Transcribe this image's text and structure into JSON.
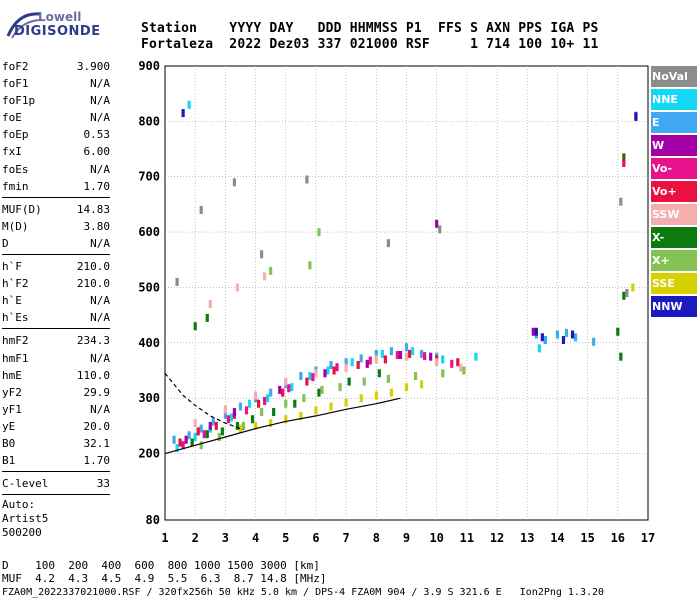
{
  "logo": {
    "line1": "Lowell",
    "line2": "DIGISONDE"
  },
  "header": {
    "row1": "Station    YYYY DAY   DDD HHMMSS P1  FFS S AXN PPS IGA PS",
    "row2": "Fortaleza  2022 Dez03 337 021000 RSF     1 714 100 10+ 11"
  },
  "params": {
    "g1": [
      {
        "name": "foF2",
        "value": "3.900"
      },
      {
        "name": "foF1",
        "value": "N/A"
      },
      {
        "name": "foF1p",
        "value": "N/A"
      },
      {
        "name": "foE",
        "value": "N/A"
      },
      {
        "name": "foEp",
        "value": "0.53"
      },
      {
        "name": "fxI",
        "value": "6.00"
      },
      {
        "name": "foEs",
        "value": "N/A"
      },
      {
        "name": "fmin",
        "value": "1.70"
      }
    ],
    "g2": [
      {
        "name": "MUF(D)",
        "value": "14.83"
      },
      {
        "name": "M(D)",
        "value": "3.80"
      },
      {
        "name": "D",
        "value": "N/A"
      }
    ],
    "g3": [
      {
        "name": "h`F",
        "value": "210.0"
      },
      {
        "name": "h`F2",
        "value": "210.0"
      },
      {
        "name": "h`E",
        "value": "N/A"
      },
      {
        "name": "h`Es",
        "value": "N/A"
      }
    ],
    "g4": [
      {
        "name": "hmF2",
        "value": "234.3"
      },
      {
        "name": "hmF1",
        "value": "N/A"
      },
      {
        "name": "hmE",
        "value": "110.0"
      },
      {
        "name": "yF2",
        "value": "29.9"
      },
      {
        "name": "yF1",
        "value": "N/A"
      },
      {
        "name": "yE",
        "value": "20.0"
      },
      {
        "name": "B0",
        "value": "32.1"
      },
      {
        "name": "B1",
        "value": "1.70"
      }
    ],
    "g5": [
      {
        "name": "C-level",
        "value": "33"
      }
    ],
    "auto": [
      "Auto:",
      "Artist5",
      "500200"
    ]
  },
  "legend": [
    {
      "label": "NoVal",
      "color": "#8c8c8c"
    },
    {
      "label": "NNE",
      "color": "#13d8f5"
    },
    {
      "label": "E",
      "color": "#3fa8f0"
    },
    {
      "label": "W",
      "color": "#a300a3"
    },
    {
      "label": "Vo-",
      "color": "#e8138c"
    },
    {
      "label": "Vo+",
      "color": "#ea1040"
    },
    {
      "label": "SSW",
      "color": "#f5aeae"
    },
    {
      "label": "X-",
      "color": "#0d7a0d"
    },
    {
      "label": "X+",
      "color": "#84c254"
    },
    {
      "label": "SSE",
      "color": "#d6d000"
    },
    {
      "label": "NNW",
      "color": "#1a1ac0"
    }
  ],
  "chart_data": {
    "type": "scatter",
    "xlim": [
      1,
      17
    ],
    "ylim": [
      80,
      900
    ],
    "x_ticks": [
      "1",
      "2",
      "3",
      "4",
      "5",
      "6",
      "7",
      "8",
      "9",
      "10",
      "11",
      "12",
      "13",
      "14",
      "15",
      "16",
      "17"
    ],
    "y_ticks": [
      "80",
      "200",
      "300",
      "400",
      "500",
      "600",
      "700",
      "800",
      "900"
    ],
    "grid": "dotted",
    "series": [
      {
        "name": "E",
        "points": [
          [
            1.3,
            225
          ],
          [
            1.8,
            233
          ],
          [
            2.2,
            245
          ],
          [
            2.6,
            258
          ],
          [
            3.0,
            270
          ],
          [
            3.5,
            285
          ],
          [
            4.0,
            300
          ],
          [
            4.5,
            310
          ],
          [
            5.0,
            325
          ],
          [
            5.5,
            340
          ],
          [
            6.0,
            350
          ],
          [
            6.5,
            360
          ],
          [
            7.0,
            365
          ],
          [
            7.5,
            372
          ],
          [
            8.0,
            380
          ],
          [
            8.5,
            385
          ],
          [
            9.0,
            392
          ],
          [
            9.5,
            380
          ],
          [
            10.0,
            375
          ],
          [
            13.3,
            415
          ],
          [
            13.6,
            405
          ],
          [
            14.0,
            415
          ],
          [
            14.3,
            418
          ],
          [
            14.6,
            410
          ],
          [
            15.2,
            402
          ]
        ]
      },
      {
        "name": "NNE",
        "points": [
          [
            1.4,
            210
          ],
          [
            2.0,
            230
          ],
          [
            2.5,
            245
          ],
          [
            3.2,
            265
          ],
          [
            3.8,
            290
          ],
          [
            4.4,
            300
          ],
          [
            5.2,
            320
          ],
          [
            5.8,
            340
          ],
          [
            6.4,
            350
          ],
          [
            7.2,
            365
          ],
          [
            8.2,
            380
          ],
          [
            9.2,
            385
          ],
          [
            10.2,
            370
          ],
          [
            11.3,
            375
          ],
          [
            1.8,
            830
          ],
          [
            13.4,
            390
          ]
        ]
      },
      {
        "name": "X-",
        "points": [
          [
            1.9,
            220
          ],
          [
            2.4,
            235
          ],
          [
            2.9,
            240
          ],
          [
            3.4,
            250
          ],
          [
            3.9,
            262
          ],
          [
            4.6,
            275
          ],
          [
            5.3,
            290
          ],
          [
            6.1,
            310
          ],
          [
            7.1,
            330
          ],
          [
            8.1,
            345
          ],
          [
            2.0,
            430
          ],
          [
            2.4,
            445
          ],
          [
            16.2,
            735
          ],
          [
            16.2,
            485
          ],
          [
            16.0,
            420
          ],
          [
            16.1,
            375
          ]
        ]
      },
      {
        "name": "X+",
        "points": [
          [
            2.2,
            215
          ],
          [
            2.8,
            230
          ],
          [
            3.6,
            250
          ],
          [
            4.2,
            275
          ],
          [
            5.0,
            290
          ],
          [
            5.6,
            300
          ],
          [
            6.2,
            315
          ],
          [
            6.8,
            320
          ],
          [
            7.6,
            330
          ],
          [
            8.4,
            335
          ],
          [
            9.3,
            340
          ],
          [
            10.2,
            345
          ],
          [
            10.9,
            350
          ],
          [
            4.5,
            530
          ],
          [
            5.8,
            540
          ],
          [
            6.1,
            600
          ]
        ]
      },
      {
        "name": "SSE",
        "points": [
          [
            3.5,
            245
          ],
          [
            4.0,
            250
          ],
          [
            4.5,
            255
          ],
          [
            5.0,
            262
          ],
          [
            5.5,
            268
          ],
          [
            6.0,
            278
          ],
          [
            6.5,
            285
          ],
          [
            7.0,
            292
          ],
          [
            7.5,
            300
          ],
          [
            8.0,
            305
          ],
          [
            8.5,
            310
          ],
          [
            9.0,
            320
          ],
          [
            9.5,
            325
          ],
          [
            16.5,
            500
          ]
        ]
      },
      {
        "name": "Vo+",
        "points": [
          [
            1.5,
            220
          ],
          [
            2.1,
            240
          ],
          [
            2.7,
            250
          ],
          [
            3.3,
            270
          ],
          [
            4.1,
            290
          ],
          [
            4.9,
            310
          ],
          [
            5.7,
            330
          ],
          [
            6.6,
            350
          ],
          [
            7.4,
            360
          ],
          [
            8.3,
            370
          ],
          [
            9.1,
            380
          ],
          [
            10.0,
            370
          ],
          [
            10.7,
            365
          ],
          [
            16.2,
            725
          ]
        ]
      },
      {
        "name": "Vo-",
        "points": [
          [
            1.6,
            215
          ],
          [
            2.3,
            235
          ],
          [
            3.1,
            262
          ],
          [
            3.7,
            278
          ],
          [
            4.3,
            295
          ],
          [
            5.1,
            318
          ],
          [
            5.9,
            338
          ],
          [
            6.7,
            356
          ],
          [
            7.8,
            368
          ],
          [
            8.7,
            378
          ],
          [
            9.6,
            376
          ],
          [
            10.5,
            362
          ]
        ]
      },
      {
        "name": "W",
        "points": [
          [
            1.7,
            225
          ],
          [
            2.5,
            250
          ],
          [
            3.3,
            275
          ],
          [
            4.8,
            315
          ],
          [
            6.3,
            345
          ],
          [
            7.7,
            362
          ],
          [
            8.8,
            378
          ],
          [
            9.8,
            375
          ],
          [
            10.0,
            615
          ],
          [
            16.6,
            810
          ],
          [
            13.2,
            420
          ]
        ]
      },
      {
        "name": "SSW",
        "points": [
          [
            2.0,
            255
          ],
          [
            3.0,
            280
          ],
          [
            4.0,
            305
          ],
          [
            5.0,
            330
          ],
          [
            6.0,
            345
          ],
          [
            7.0,
            355
          ],
          [
            8.0,
            370
          ],
          [
            9.0,
            375
          ],
          [
            10.0,
            365
          ],
          [
            10.8,
            355
          ],
          [
            2.5,
            470
          ],
          [
            3.4,
            500
          ],
          [
            4.3,
            520
          ]
        ]
      },
      {
        "name": "NNW",
        "points": [
          [
            1.6,
            815
          ],
          [
            13.3,
            420
          ],
          [
            13.5,
            410
          ],
          [
            14.2,
            405
          ],
          [
            14.5,
            415
          ],
          [
            16.6,
            808
          ]
        ]
      },
      {
        "name": "NoVal",
        "points": [
          [
            1.4,
            510
          ],
          [
            2.2,
            640
          ],
          [
            3.3,
            690
          ],
          [
            4.2,
            560
          ],
          [
            5.7,
            695
          ],
          [
            8.4,
            580
          ],
          [
            10.1,
            605
          ],
          [
            16.1,
            655
          ],
          [
            16.3,
            490
          ]
        ]
      }
    ],
    "trace": [
      [
        1.0,
        200
      ],
      [
        2.0,
        215
      ],
      [
        3.0,
        230
      ],
      [
        4.0,
        245
      ],
      [
        5.0,
        258
      ],
      [
        6.0,
        268
      ],
      [
        7.0,
        280
      ],
      [
        8.0,
        290
      ],
      [
        8.8,
        300
      ]
    ],
    "trace_dashed": [
      [
        1.0,
        345
      ],
      [
        1.3,
        325
      ],
      [
        1.6,
        305
      ],
      [
        2.0,
        287
      ],
      [
        2.5,
        268
      ],
      [
        3.0,
        255
      ],
      [
        3.6,
        243
      ]
    ]
  },
  "footer": {
    "row1": "D    100  200  400  600  800 1000 1500 3000 [km]",
    "row2": "MUF  4.2  4.3  4.5  4.9  5.5  6.3  8.7 14.8 [MHz]",
    "row3": "FZA0M_2022337021000.RSF / 320fx256h 50 kHz 5.0 km / DPS-4 FZA0M 904 / 3.9 S 321.6 E   Ion2Png 1.3.20"
  }
}
